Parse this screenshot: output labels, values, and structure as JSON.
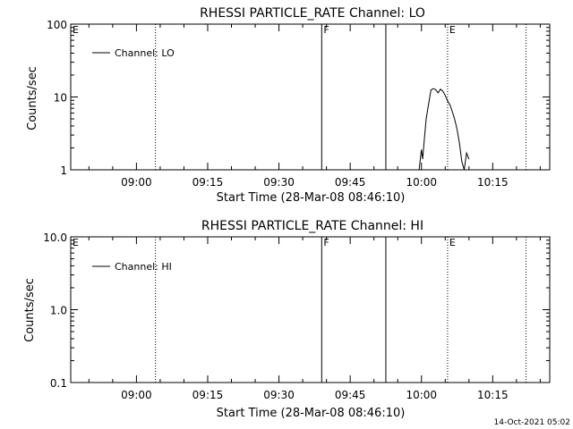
{
  "footer_timestamp": "14-Oct-2021 05:02",
  "chart_data": [
    {
      "type": "line",
      "title": "RHESSI PARTICLE_RATE Channel: LO",
      "xlabel": "Start Time (28-Mar-08 08:46:10)",
      "ylabel": "Counts/sec",
      "yscale": "log",
      "xlim": [
        "08:46:10",
        "10:27:00"
      ],
      "ylim": [
        1,
        100
      ],
      "ytick_labels": [
        "1",
        "10",
        "100"
      ],
      "ytick_values": [
        1,
        10,
        100
      ],
      "xtick_labels": [
        "09:00",
        "09:15",
        "09:30",
        "09:45",
        "10:00",
        "10:15"
      ],
      "legend": {
        "entries": [
          "Channel: LO"
        ],
        "placement": "top-left"
      },
      "annotations": [
        {
          "text": "E",
          "x": "08:46:10",
          "style": "label"
        },
        {
          "text": "",
          "x": "09:04:00",
          "style": "dotted"
        },
        {
          "text": "F",
          "x": "09:39:00",
          "style": "solid"
        },
        {
          "text": "",
          "x": "09:52:30",
          "style": "solid"
        },
        {
          "text": "E",
          "x": "10:05:30",
          "style": "dotted"
        },
        {
          "text": "",
          "x": "10:22:00",
          "style": "dotted"
        }
      ],
      "series": [
        {
          "name": "Channel: LO",
          "x": [
            "09:59:30",
            "10:00:00",
            "10:00:15",
            "10:00:30",
            "10:00:45",
            "10:01:00",
            "10:01:30",
            "10:02:00",
            "10:02:30",
            "10:03:00",
            "10:03:30",
            "10:04:00",
            "10:04:30",
            "10:05:00",
            "10:05:30",
            "10:06:00",
            "10:06:30",
            "10:07:00",
            "10:07:30",
            "10:08:00",
            "10:08:30",
            "10:09:00",
            "10:09:30",
            "10:10:00"
          ],
          "values": [
            1,
            1.9,
            1.4,
            2.2,
            3.3,
            5,
            8,
            12.5,
            13,
            12.6,
            11.4,
            12.8,
            12,
            10.5,
            8.8,
            7.8,
            6.3,
            4.9,
            3.6,
            2.3,
            1.3,
            1,
            1.7,
            1.4
          ]
        }
      ]
    },
    {
      "type": "line",
      "title": "RHESSI PARTICLE_RATE Channel: HI",
      "xlabel": "Start Time (28-Mar-08 08:46:10)",
      "ylabel": "Counts/sec",
      "yscale": "log",
      "xlim": [
        "08:46:10",
        "10:27:00"
      ],
      "ylim": [
        0.1,
        10
      ],
      "ytick_labels": [
        "0.1",
        "1.0",
        "10.0"
      ],
      "ytick_values": [
        0.1,
        1,
        10
      ],
      "xtick_labels": [
        "09:00",
        "09:15",
        "09:30",
        "09:45",
        "10:00",
        "10:15"
      ],
      "legend": {
        "entries": [
          "Channel: HI"
        ],
        "placement": "top-left"
      },
      "annotations": [
        {
          "text": "E",
          "x": "08:46:10",
          "style": "label"
        },
        {
          "text": "",
          "x": "09:04:00",
          "style": "dotted"
        },
        {
          "text": "F",
          "x": "09:39:00",
          "style": "solid"
        },
        {
          "text": "",
          "x": "09:52:30",
          "style": "solid"
        },
        {
          "text": "E",
          "x": "10:05:30",
          "style": "dotted"
        },
        {
          "text": "",
          "x": "10:22:00",
          "style": "dotted"
        }
      ],
      "series": [
        {
          "name": "Channel: HI",
          "x": [],
          "values": []
        }
      ]
    }
  ]
}
